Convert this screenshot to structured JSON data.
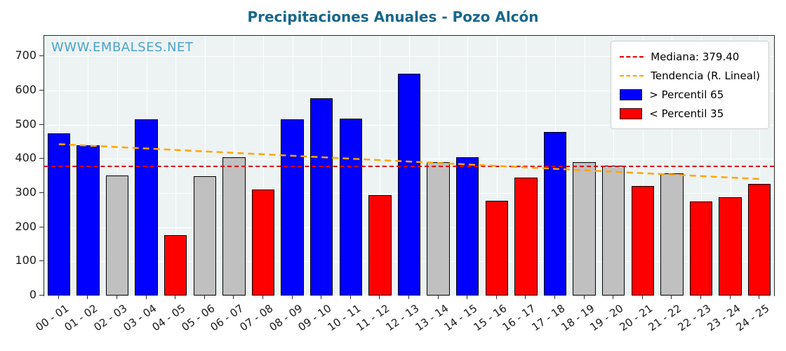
{
  "chart_data": {
    "type": "bar",
    "title": "Precipitaciones Anuales - Pozo Alcón",
    "watermark": "WWW.EMBALSES.NET",
    "categories": [
      "00 - 01",
      "01 - 02",
      "02 - 03",
      "03 - 04",
      "04 - 05",
      "05 - 06",
      "06 - 07",
      "07 - 08",
      "08 - 09",
      "09 - 10",
      "10 - 11",
      "11 - 12",
      "12 - 13",
      "13 - 14",
      "14 - 15",
      "15 - 16",
      "16 - 17",
      "17 - 18",
      "18 - 19",
      "19 - 20",
      "20 - 21",
      "21 - 22",
      "22 - 23",
      "23 - 24",
      "24 - 25"
    ],
    "values": [
      475,
      440,
      352,
      515,
      176,
      350,
      405,
      310,
      515,
      578,
      517,
      293,
      650,
      390,
      405,
      277,
      345,
      478,
      390,
      380,
      320,
      358,
      275,
      288,
      327
    ],
    "bar_colors": [
      "blue",
      "blue",
      "gray",
      "blue",
      "red",
      "gray",
      "gray",
      "red",
      "blue",
      "blue",
      "blue",
      "red",
      "blue",
      "gray",
      "blue",
      "red",
      "red",
      "blue",
      "gray",
      "gray",
      "red",
      "gray",
      "red",
      "red",
      "red"
    ],
    "color_map": {
      "blue": "#0000ff",
      "red": "#ff0000",
      "gray": "#c0c0c0"
    },
    "median": 379.4,
    "trend": {
      "start": 443,
      "end": 341
    },
    "ylim": [
      0,
      760
    ],
    "yticks": [
      0,
      100,
      200,
      300,
      400,
      500,
      600,
      700
    ],
    "grid": true,
    "legend_position": "upper right",
    "legend": [
      {
        "label": "Mediana: 379.40",
        "type": "line",
        "color": "#e00000"
      },
      {
        "label": "Tendencia (R. Lineal)",
        "type": "line",
        "color": "#ffa500"
      },
      {
        "label": "> Percentil 65",
        "type": "box",
        "color": "#0000ff"
      },
      {
        "label": "< Percentil 35",
        "type": "box",
        "color": "#ff0000"
      }
    ]
  }
}
